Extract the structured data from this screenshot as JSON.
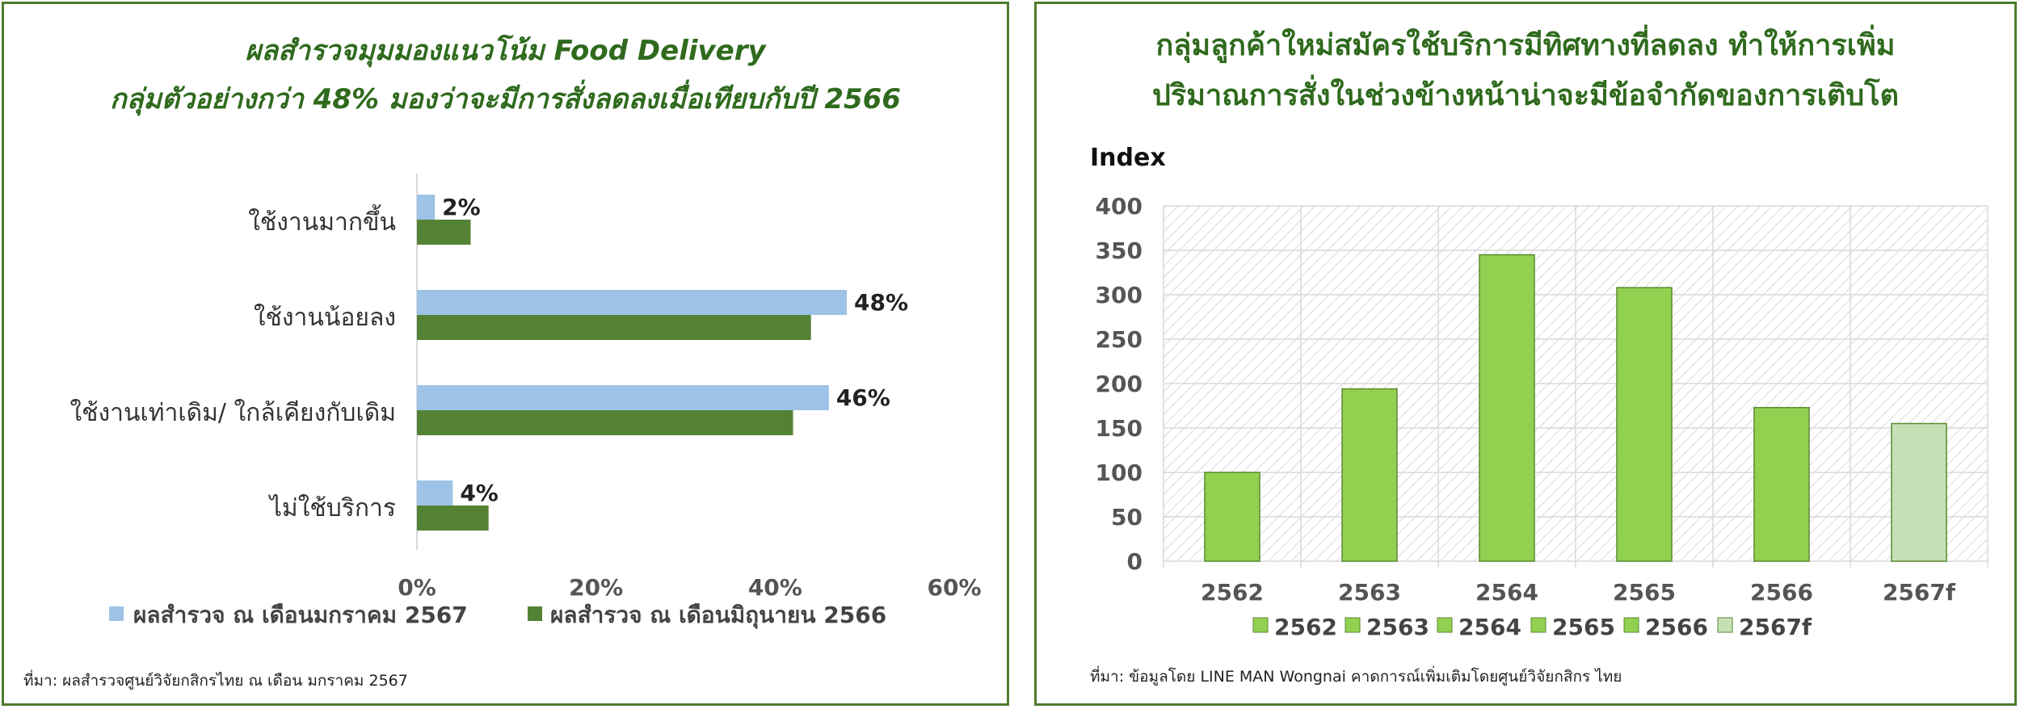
{
  "left": {
    "title_line1": "ผลสำรวจมุมมองแนวโน้ม Food Delivery",
    "title_line2": "กลุ่มตัวอย่างกว่า 48% มองว่าจะมีการสั่งลดลงเมื่อเทียบกับปี 2566",
    "source": "ที่มา: ผลสำรวจศูนย์วิจัยกสิกรไทย  ณ เดือน มกราคม 2567"
  },
  "right": {
    "title_line1": "กลุ่มลูกค้าใหม่สมัครใช้บริการมีทิศทางที่ลดลง ทำให้การเพิ่ม",
    "title_line2": "ปริมาณการสั่งในช่วงข้างหน้าน่าจะมีข้อจำกัดของการเติบโต",
    "source": "ที่มา: ข้อมูลโดย LINE MAN Wongnai  คาดการณ์เพิ่มเติมโดยศูนย์วิจัยกสิกร ไทย"
  },
  "chart_data": [
    {
      "type": "bar",
      "orientation": "horizontal",
      "categories": [
        "ใช้งานมากขึ้น",
        "ใช้งานน้อยลง",
        "ใช้งานเท่าเดิม/ ใกล้เคียงกับเดิม",
        "ไม่ใช้บริการ"
      ],
      "series": [
        {
          "name": "ผลสำรวจ ณ เดือนมกราคม 2567",
          "values": [
            2,
            48,
            46,
            4
          ],
          "color": "#9dc3e6",
          "labels": [
            "2%",
            "48%",
            "46%",
            "4%"
          ]
        },
        {
          "name": "ผลสำรวจ ณ เดือนมิถุนายน 2566",
          "values": [
            6,
            44,
            42,
            8
          ],
          "color": "#548235"
        }
      ],
      "xlim": [
        0,
        60
      ],
      "xticks": [
        "0%",
        "20%",
        "40%",
        "60%"
      ],
      "legend": "bottom",
      "grid": false
    },
    {
      "type": "bar",
      "categories": [
        "2562",
        "2563",
        "2564",
        "2565",
        "2566",
        "2567f"
      ],
      "values": [
        100,
        194,
        345,
        308,
        173,
        155
      ],
      "colors": [
        "#92d050",
        "#92d050",
        "#92d050",
        "#92d050",
        "#92d050",
        "#c5e0b4"
      ],
      "ylabel": "Index",
      "ylim": [
        0,
        400
      ],
      "yticks": [
        "0",
        "50",
        "100",
        "150",
        "200",
        "250",
        "300",
        "350",
        "400"
      ],
      "legend_entries": [
        "2562",
        "2563",
        "2564",
        "2565",
        "2566",
        "2567f"
      ],
      "legend": "bottom",
      "grid": true,
      "hatched_background": true
    }
  ]
}
